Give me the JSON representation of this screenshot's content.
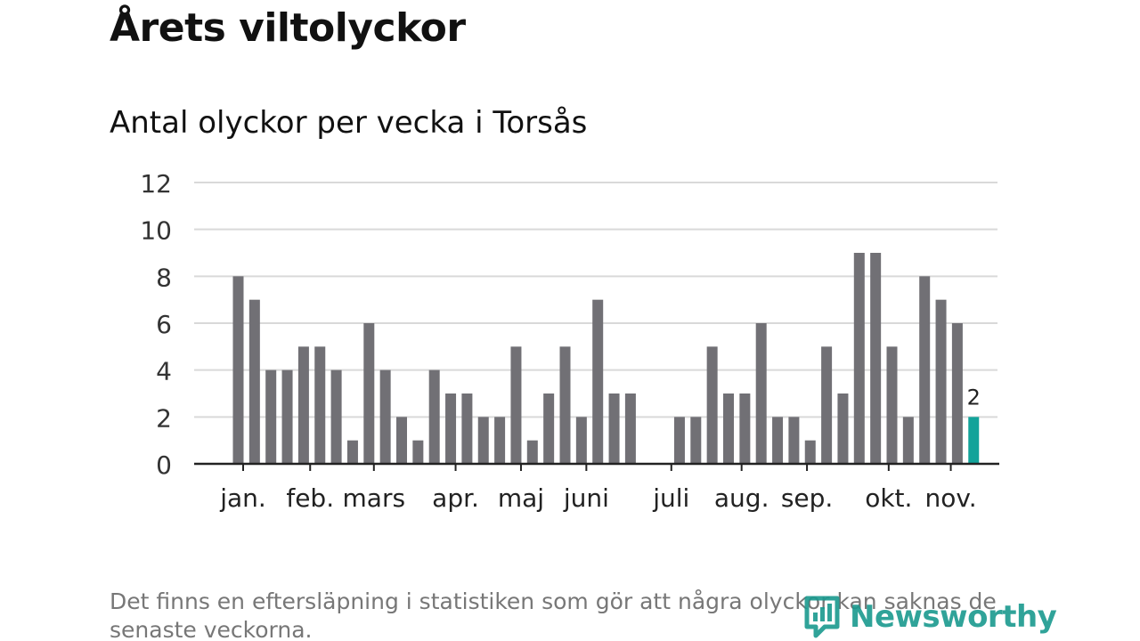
{
  "header": {
    "title": "Årets viltolyckor",
    "subtitle": "Antal olyckor per vecka i Torsås"
  },
  "footer": {
    "note": "Det finns en eftersläpning i statistiken som gör att några olyckor kan saknas de senaste veckorna.",
    "brand": "Newsworthy"
  },
  "colors": {
    "bar": "#717075",
    "highlight": "#12a39a",
    "grid": "#d9d9d9",
    "axis": "#222222",
    "brand": "#1a9a8f"
  },
  "chart_data": {
    "type": "bar",
    "title": "Antal olyckor per vecka i Torsås",
    "xlabel": "",
    "ylabel": "",
    "ylim": [
      0,
      12
    ],
    "yticks": [
      0,
      2,
      4,
      6,
      8,
      10,
      12
    ],
    "grid": true,
    "weeks": [
      1,
      2,
      3,
      4,
      5,
      6,
      7,
      8,
      9,
      10,
      11,
      12,
      13,
      14,
      15,
      16,
      17,
      18,
      19,
      20,
      21,
      22,
      23,
      24,
      25,
      26,
      27,
      28,
      29,
      30,
      31,
      32,
      33,
      34,
      35,
      36,
      37,
      38,
      39,
      40,
      41,
      42,
      43,
      44,
      45,
      46
    ],
    "values": [
      8,
      7,
      4,
      4,
      5,
      5,
      4,
      1,
      6,
      4,
      2,
      1,
      4,
      3,
      3,
      2,
      2,
      5,
      1,
      3,
      5,
      2,
      7,
      3,
      3,
      null,
      null,
      2,
      2,
      5,
      3,
      3,
      6,
      2,
      2,
      1,
      5,
      3,
      9,
      9,
      5,
      2,
      8,
      7,
      6,
      2
    ],
    "highlight_index": 45,
    "highlight_label": "2",
    "month_labels": [
      {
        "label": "jan.",
        "week": 1.3
      },
      {
        "label": "feb.",
        "week": 5.4
      },
      {
        "label": "mars",
        "week": 9.3
      },
      {
        "label": "apr.",
        "week": 14.3
      },
      {
        "label": "maj",
        "week": 18.3
      },
      {
        "label": "juni",
        "week": 22.3
      },
      {
        "label": "juli",
        "week": 27.5
      },
      {
        "label": "aug.",
        "week": 31.8
      },
      {
        "label": "sep.",
        "week": 35.8
      },
      {
        "label": "okt.",
        "week": 40.8
      },
      {
        "label": "nov.",
        "week": 44.6
      }
    ]
  }
}
